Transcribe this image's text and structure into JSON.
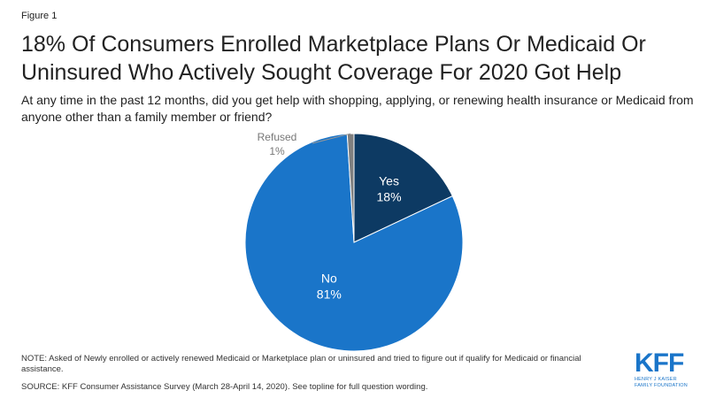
{
  "figure_label": "Figure 1",
  "title_lines": [
    "18% Of Consumers Enrolled Marketplace Plans Or Medicaid Or",
    "Uninsured Who Actively Sought Coverage For 2020 Got Help"
  ],
  "subtitle": "At any time in the past 12 months, did you get help with shopping, applying, or renewing health insurance or Medicaid from anyone other than a family member or friend?",
  "chart_data": {
    "type": "pie",
    "title": "18% Of Consumers Enrolled Marketplace Plans Or Medicaid Or Uninsured Who Actively Sought Coverage For 2020 Got Help",
    "categories": [
      "Yes",
      "No",
      "Refused"
    ],
    "values": [
      18,
      81,
      1
    ],
    "value_labels": [
      "18%",
      "81%",
      "1%"
    ],
    "colors": [
      "#0d3a63",
      "#1a75c9",
      "#7f7f7f"
    ],
    "start_angle_deg": 0,
    "direction": "clockwise"
  },
  "note": "NOTE: Asked of Newly enrolled or actively renewed Medicaid or Marketplace plan or uninsured  and tried to figure out if qualify  for Medicaid or financial assistance.",
  "source": "SOURCE: KFF Consumer Assistance Survey (March 28-April 14, 2020). See topline for full question wording.",
  "logo": {
    "mark": "KFF",
    "line1": "HENRY J KAISER",
    "line2": "FAMILY FOUNDATION"
  }
}
